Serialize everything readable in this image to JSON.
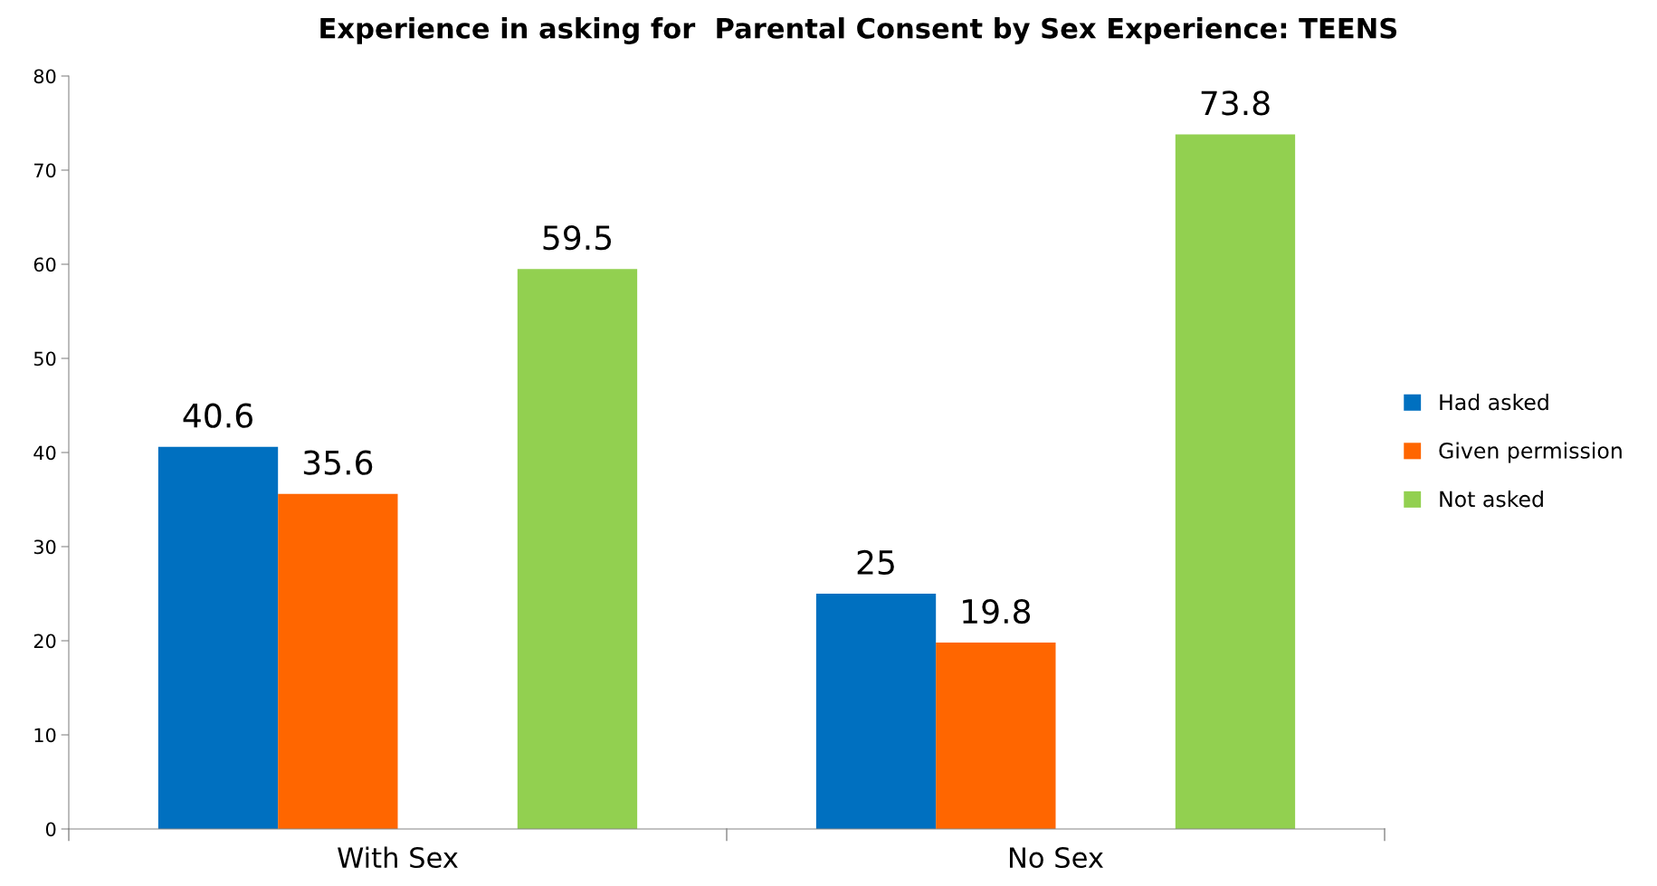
{
  "chart_data": {
    "type": "bar",
    "title": "Experience in asking for  Parental Consent by Sex Experience: TEENS",
    "categories": [
      "With Sex",
      "No Sex"
    ],
    "series": [
      {
        "name": "Had asked",
        "color": "#0070c0",
        "values": [
          40.6,
          25
        ]
      },
      {
        "name": "Given permission",
        "color": "#ff6600",
        "values": [
          35.6,
          19.8
        ]
      },
      {
        "name": "Not asked",
        "color": "#92d050",
        "values": [
          59.5,
          73.8
        ]
      }
    ],
    "ylim": [
      0,
      80
    ],
    "yticks": [
      0,
      10,
      20,
      30,
      40,
      50,
      60,
      70,
      80
    ],
    "grid": false,
    "legend": "right",
    "data_labels": true
  }
}
